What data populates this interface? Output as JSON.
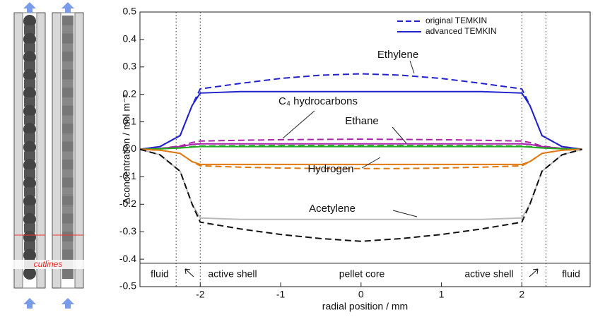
{
  "chart_data": {
    "type": "line",
    "xlabel": "radial position / mm",
    "ylabel": "Δconcentration / mol m⁻³",
    "xlim": [
      -2.75,
      2.85
    ],
    "ylim": [
      -0.5,
      0.5
    ],
    "xticks": [
      -2,
      -1,
      0,
      1,
      2
    ],
    "yticks": [
      0.5,
      0.4,
      0.3,
      0.2,
      0.1,
      {
        "value": 0,
        "label": "0.0"
      },
      -0.1,
      -0.2,
      -0.3,
      -0.4,
      -0.5
    ],
    "legend": [
      {
        "label": "original TEMKIN",
        "dashed": true
      },
      {
        "label": "advanced TEMKIN",
        "dashed": false
      }
    ],
    "legend_position": "upper right",
    "x": [
      -2.75,
      -2.5,
      -2.25,
      -2.1,
      -2,
      -1.5,
      -1,
      -0.5,
      0,
      0.5,
      1,
      1.5,
      2,
      2.1,
      2.25,
      2.5,
      2.75
    ],
    "series": [
      {
        "name": "Ethylene",
        "color": "#2222cc",
        "original": [
          0,
          0.01,
          0.05,
          0.16,
          0.22,
          0.24,
          0.258,
          0.27,
          0.275,
          0.27,
          0.258,
          0.24,
          0.22,
          0.16,
          0.05,
          0.01,
          0
        ],
        "advanced": [
          0,
          0.01,
          0.05,
          0.16,
          0.205,
          0.21,
          0.21,
          0.21,
          0.21,
          0.21,
          0.21,
          0.21,
          0.205,
          0.16,
          0.05,
          0.01,
          0
        ]
      },
      {
        "name": "C₄ hydrocarbons",
        "color": "#aa22aa",
        "original": [
          0,
          0.003,
          0.012,
          0.025,
          0.03,
          0.033,
          0.035,
          0.036,
          0.037,
          0.036,
          0.035,
          0.033,
          0.03,
          0.025,
          0.012,
          0.003,
          0
        ],
        "advanced": [
          0,
          0.003,
          0.01,
          0.018,
          0.02,
          0.02,
          0.02,
          0.02,
          0.02,
          0.02,
          0.02,
          0.02,
          0.02,
          0.018,
          0.01,
          0.003,
          0
        ]
      },
      {
        "name": "Ethane",
        "color": "#22aa22",
        "original": [
          0,
          0.002,
          0.006,
          0.01,
          0.012,
          0.013,
          0.014,
          0.014,
          0.014,
          0.014,
          0.014,
          0.013,
          0.012,
          0.01,
          0.006,
          0.002,
          0
        ],
        "advanced": [
          0,
          0.002,
          0.005,
          0.008,
          0.01,
          0.01,
          0.01,
          0.01,
          0.01,
          0.01,
          0.01,
          0.01,
          0.01,
          0.008,
          0.005,
          0.002,
          0
        ]
      },
      {
        "name": "Hydrogen",
        "color": "#e07a10",
        "original": [
          0,
          -0.003,
          -0.015,
          -0.045,
          -0.06,
          -0.065,
          -0.068,
          -0.07,
          -0.07,
          -0.07,
          -0.068,
          -0.065,
          -0.06,
          -0.045,
          -0.015,
          -0.003,
          0
        ],
        "advanced": [
          0,
          -0.003,
          -0.015,
          -0.045,
          -0.055,
          -0.055,
          -0.055,
          -0.055,
          -0.055,
          -0.055,
          -0.055,
          -0.055,
          -0.055,
          -0.045,
          -0.015,
          -0.003,
          0
        ]
      },
      {
        "name": "Acetylene",
        "color": "#111111",
        "advanced_color": "#bbbbbb",
        "original": [
          0,
          -0.02,
          -0.08,
          -0.2,
          -0.265,
          -0.29,
          -0.31,
          -0.325,
          -0.335,
          -0.325,
          -0.31,
          -0.29,
          -0.265,
          -0.2,
          -0.08,
          -0.02,
          0
        ],
        "advanced": [
          0,
          -0.02,
          -0.08,
          -0.2,
          -0.25,
          -0.255,
          -0.255,
          -0.255,
          -0.255,
          -0.255,
          -0.255,
          -0.255,
          -0.25,
          -0.2,
          -0.08,
          -0.02,
          0
        ]
      }
    ],
    "regions": {
      "boundaries": [
        -2.3,
        -2,
        2,
        2.3
      ],
      "labels": [
        "fluid",
        "active shell",
        "pellet core",
        "active shell",
        "fluid"
      ]
    },
    "schematic_label": "cutlines"
  }
}
